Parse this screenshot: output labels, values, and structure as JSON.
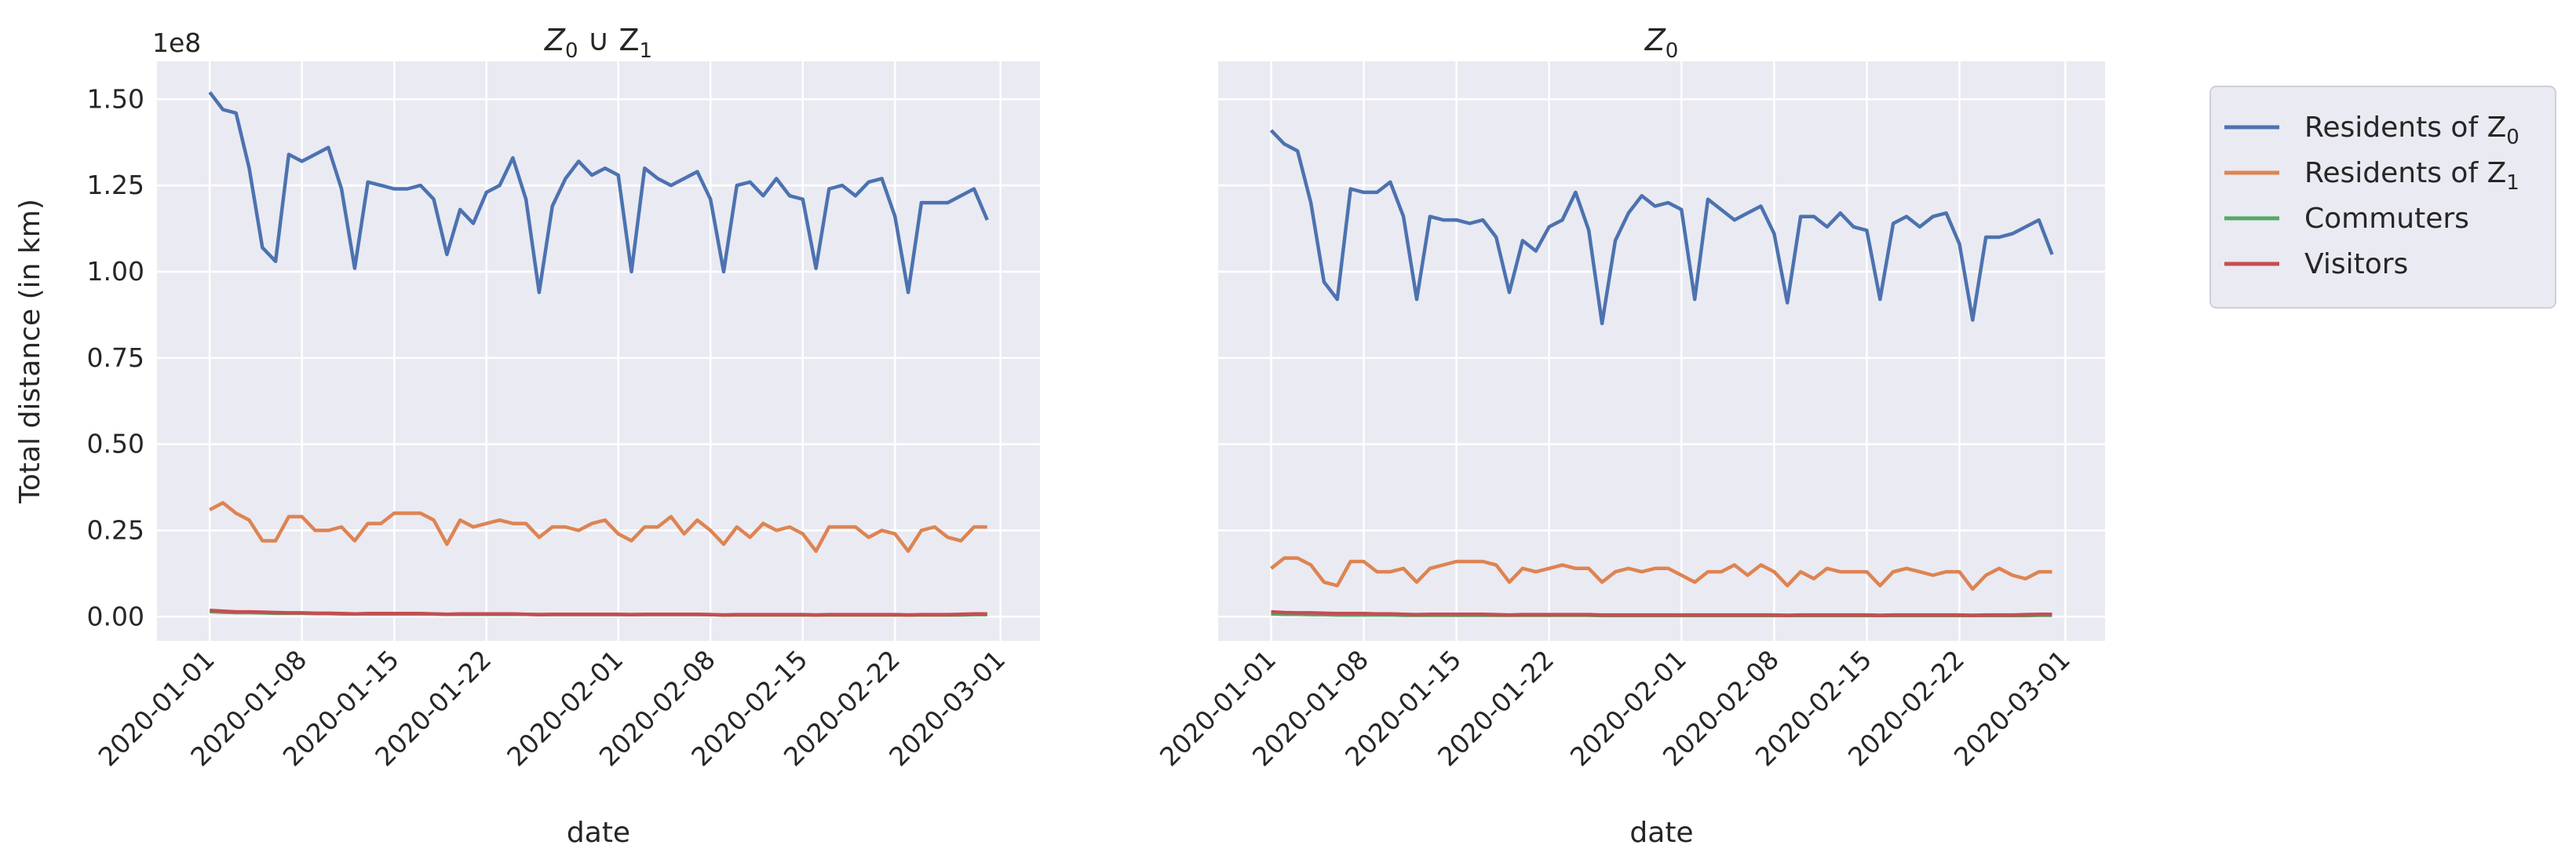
{
  "chart_data": [
    {
      "type": "line",
      "title": "Z0 ∪ Z1",
      "title_base": "Z",
      "title_sub_1": "0",
      "title_mid": " ∪ Z",
      "title_sub_2": "1",
      "xlabel": "date",
      "ylabel": "Total distance (in km)",
      "y_multiplier": "1e8",
      "ylim": [
        -0.07,
        1.61
      ],
      "xlim": [
        "2019-12-28",
        "2020-03-04"
      ],
      "yticks": [
        "0.00",
        "0.25",
        "0.50",
        "0.75",
        "1.00",
        "1.25",
        "1.50"
      ],
      "ytick_values": [
        0,
        0.25,
        0.5,
        0.75,
        1.0,
        1.25,
        1.5
      ],
      "xticks": [
        "2020-01-01",
        "2020-01-08",
        "2020-01-15",
        "2020-01-22",
        "2020-02-01",
        "2020-02-08",
        "2020-02-15",
        "2020-02-22",
        "2020-03-01"
      ],
      "grid": true,
      "x_start": "2020-01-01",
      "series": [
        {
          "name": "Residents of Z0",
          "color": "#4c72b0",
          "values": [
            1.52,
            1.47,
            1.46,
            1.3,
            1.07,
            1.03,
            1.34,
            1.32,
            1.34,
            1.36,
            1.24,
            1.01,
            1.26,
            1.25,
            1.24,
            1.24,
            1.25,
            1.21,
            1.05,
            1.18,
            1.14,
            1.23,
            1.25,
            1.33,
            1.21,
            0.94,
            1.19,
            1.27,
            1.32,
            1.28,
            1.3,
            1.28,
            1.0,
            1.3,
            1.27,
            1.25,
            1.27,
            1.29,
            1.21,
            1.0,
            1.25,
            1.26,
            1.22,
            1.27,
            1.22,
            1.21,
            1.01,
            1.24,
            1.25,
            1.22,
            1.26,
            1.27,
            1.16,
            0.94,
            1.2,
            1.2,
            1.2,
            1.22,
            1.24,
            1.15
          ]
        },
        {
          "name": "Residents of Z1",
          "color": "#dd8452",
          "values": [
            0.31,
            0.33,
            0.3,
            0.28,
            0.22,
            0.22,
            0.29,
            0.29,
            0.25,
            0.25,
            0.26,
            0.22,
            0.27,
            0.27,
            0.3,
            0.3,
            0.3,
            0.28,
            0.21,
            0.28,
            0.26,
            0.27,
            0.28,
            0.27,
            0.27,
            0.23,
            0.26,
            0.26,
            0.25,
            0.27,
            0.28,
            0.24,
            0.22,
            0.26,
            0.26,
            0.29,
            0.24,
            0.28,
            0.25,
            0.21,
            0.26,
            0.23,
            0.27,
            0.25,
            0.26,
            0.24,
            0.19,
            0.26,
            0.26,
            0.26,
            0.23,
            0.25,
            0.24,
            0.19,
            0.25,
            0.26,
            0.23,
            0.22,
            0.26,
            0.26
          ]
        },
        {
          "name": "Commuters",
          "color": "#55a868",
          "values": [
            0.015,
            0.013,
            0.012,
            0.012,
            0.011,
            0.01,
            0.01,
            0.01,
            0.009,
            0.009,
            0.008,
            0.008,
            0.008,
            0.008,
            0.008,
            0.008,
            0.008,
            0.008,
            0.007,
            0.007,
            0.007,
            0.007,
            0.007,
            0.007,
            0.007,
            0.006,
            0.006,
            0.006,
            0.006,
            0.006,
            0.006,
            0.006,
            0.006,
            0.006,
            0.006,
            0.006,
            0.006,
            0.006,
            0.006,
            0.005,
            0.005,
            0.005,
            0.005,
            0.005,
            0.005,
            0.005,
            0.005,
            0.005,
            0.005,
            0.005,
            0.005,
            0.005,
            0.005,
            0.005,
            0.005,
            0.005,
            0.005,
            0.005,
            0.006,
            0.006
          ]
        },
        {
          "name": "Visitors",
          "color": "#c44e52",
          "values": [
            0.018,
            0.016,
            0.014,
            0.014,
            0.013,
            0.012,
            0.011,
            0.011,
            0.01,
            0.01,
            0.009,
            0.008,
            0.009,
            0.009,
            0.009,
            0.009,
            0.009,
            0.008,
            0.007,
            0.008,
            0.008,
            0.008,
            0.008,
            0.008,
            0.007,
            0.006,
            0.007,
            0.007,
            0.007,
            0.007,
            0.007,
            0.007,
            0.006,
            0.007,
            0.007,
            0.007,
            0.007,
            0.007,
            0.006,
            0.005,
            0.006,
            0.006,
            0.006,
            0.006,
            0.006,
            0.006,
            0.005,
            0.006,
            0.006,
            0.006,
            0.006,
            0.006,
            0.006,
            0.005,
            0.006,
            0.006,
            0.006,
            0.007,
            0.008,
            0.008
          ]
        }
      ]
    },
    {
      "type": "line",
      "title": "Z0",
      "title_base": "Z",
      "title_sub_1": "0",
      "xlabel": "date",
      "ylabel": "",
      "ylim": [
        -0.07,
        1.61
      ],
      "xlim": [
        "2019-12-28",
        "2020-03-04"
      ],
      "xticks": [
        "2020-01-01",
        "2020-01-08",
        "2020-01-15",
        "2020-01-22",
        "2020-02-01",
        "2020-02-08",
        "2020-02-15",
        "2020-02-22",
        "2020-03-01"
      ],
      "grid": true,
      "x_start": "2020-01-01",
      "series": [
        {
          "name": "Residents of Z0",
          "color": "#4c72b0",
          "values": [
            1.41,
            1.37,
            1.35,
            1.2,
            0.97,
            0.92,
            1.24,
            1.23,
            1.23,
            1.26,
            1.16,
            0.92,
            1.16,
            1.15,
            1.15,
            1.14,
            1.15,
            1.1,
            0.94,
            1.09,
            1.06,
            1.13,
            1.15,
            1.23,
            1.12,
            0.85,
            1.09,
            1.17,
            1.22,
            1.19,
            1.2,
            1.18,
            0.92,
            1.21,
            1.18,
            1.15,
            1.17,
            1.19,
            1.11,
            0.91,
            1.16,
            1.16,
            1.13,
            1.17,
            1.13,
            1.12,
            0.92,
            1.14,
            1.16,
            1.13,
            1.16,
            1.17,
            1.08,
            0.86,
            1.1,
            1.1,
            1.11,
            1.13,
            1.15,
            1.05
          ]
        },
        {
          "name": "Residents of Z1",
          "color": "#dd8452",
          "values": [
            0.14,
            0.17,
            0.17,
            0.15,
            0.1,
            0.09,
            0.16,
            0.16,
            0.13,
            0.13,
            0.14,
            0.1,
            0.14,
            0.15,
            0.16,
            0.16,
            0.16,
            0.15,
            0.1,
            0.14,
            0.13,
            0.14,
            0.15,
            0.14,
            0.14,
            0.1,
            0.13,
            0.14,
            0.13,
            0.14,
            0.14,
            0.12,
            0.1,
            0.13,
            0.13,
            0.15,
            0.12,
            0.15,
            0.13,
            0.09,
            0.13,
            0.11,
            0.14,
            0.13,
            0.13,
            0.13,
            0.09,
            0.13,
            0.14,
            0.13,
            0.12,
            0.13,
            0.13,
            0.08,
            0.12,
            0.14,
            0.12,
            0.11,
            0.13,
            0.13
          ]
        },
        {
          "name": "Commuters",
          "color": "#55a868",
          "values": [
            0.008,
            0.007,
            0.007,
            0.006,
            0.006,
            0.005,
            0.005,
            0.005,
            0.005,
            0.005,
            0.004,
            0.004,
            0.004,
            0.004,
            0.004,
            0.004,
            0.004,
            0.004,
            0.004,
            0.004,
            0.004,
            0.004,
            0.004,
            0.004,
            0.004,
            0.003,
            0.003,
            0.003,
            0.003,
            0.003,
            0.003,
            0.003,
            0.003,
            0.003,
            0.003,
            0.003,
            0.003,
            0.003,
            0.003,
            0.003,
            0.003,
            0.003,
            0.003,
            0.003,
            0.003,
            0.003,
            0.003,
            0.003,
            0.003,
            0.003,
            0.003,
            0.003,
            0.003,
            0.003,
            0.003,
            0.003,
            0.003,
            0.003,
            0.004,
            0.004
          ]
        },
        {
          "name": "Visitors",
          "color": "#c44e52",
          "values": [
            0.014,
            0.012,
            0.011,
            0.011,
            0.01,
            0.009,
            0.009,
            0.009,
            0.008,
            0.008,
            0.007,
            0.006,
            0.007,
            0.007,
            0.007,
            0.007,
            0.007,
            0.006,
            0.005,
            0.006,
            0.006,
            0.006,
            0.006,
            0.006,
            0.006,
            0.005,
            0.005,
            0.005,
            0.005,
            0.005,
            0.005,
            0.005,
            0.005,
            0.005,
            0.005,
            0.005,
            0.005,
            0.005,
            0.005,
            0.004,
            0.005,
            0.005,
            0.005,
            0.005,
            0.005,
            0.005,
            0.004,
            0.005,
            0.005,
            0.005,
            0.005,
            0.005,
            0.005,
            0.004,
            0.005,
            0.005,
            0.005,
            0.006,
            0.007,
            0.007
          ]
        }
      ]
    }
  ],
  "legend": {
    "placement": "outside-right",
    "entries": [
      {
        "label_prefix": "Residents of Z",
        "label_sub": "0",
        "color": "#4c72b0"
      },
      {
        "label_prefix": "Residents of Z",
        "label_sub": "1",
        "color": "#dd8452"
      },
      {
        "label_prefix": "Commuters",
        "label_sub": "",
        "color": "#55a868"
      },
      {
        "label_prefix": "Visitors",
        "label_sub": "",
        "color": "#c44e52"
      }
    ]
  },
  "style": {
    "plot_bg": "#eaeaf2",
    "grid_color": "#ffffff"
  }
}
